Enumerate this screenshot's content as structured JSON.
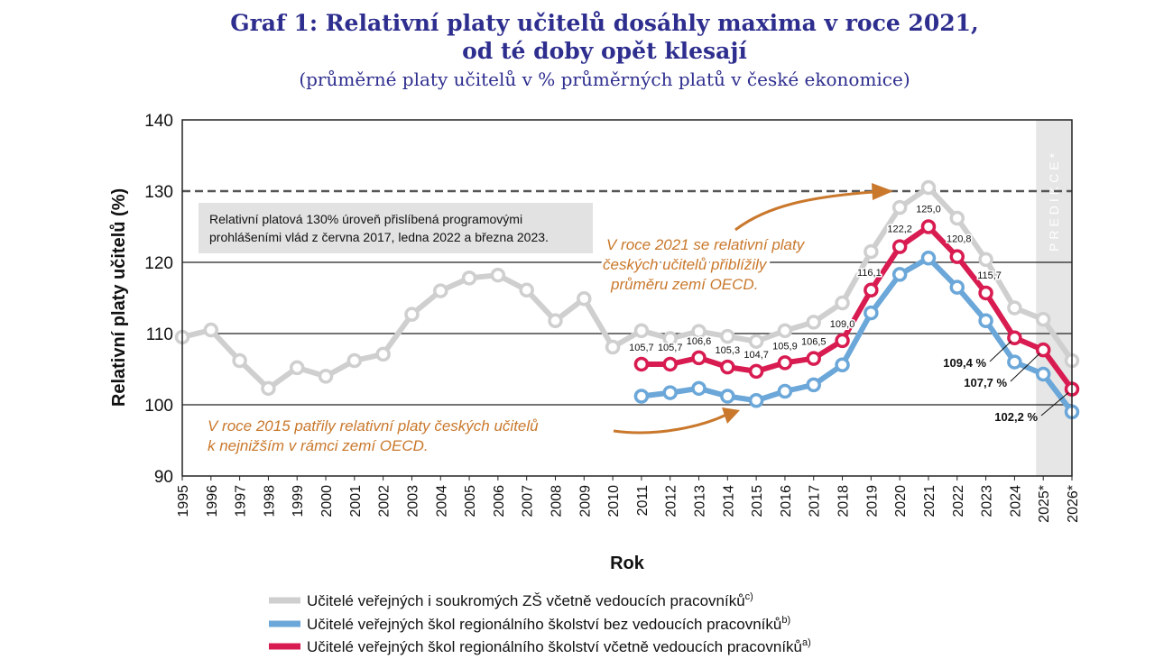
{
  "chart_data": {
    "type": "line",
    "title_line1": "Graf 1: Relativní platy učitelů dosáhly maxima v roce 2021,",
    "title_line2": "od té doby opět klesají",
    "subtitle": "(průměrné platy učitelů v % průměrných platů v české ekonomice)",
    "xlabel": "Rok",
    "ylabel": "Relativní platy učitelů (%)",
    "ylim": [
      90,
      140
    ],
    "yticks": [
      90,
      100,
      110,
      120,
      130,
      140
    ],
    "grid": true,
    "x": [
      "1995",
      "1996",
      "1997",
      "1998",
      "1999",
      "2000",
      "2001",
      "2002",
      "2003",
      "2004",
      "2005",
      "2006",
      "2007",
      "2008",
      "2009",
      "2010",
      "2011",
      "2012",
      "2013",
      "2014",
      "2015",
      "2016",
      "2017",
      "2018",
      "2019",
      "2020",
      "2021",
      "2022",
      "2023",
      "2024",
      "2025*",
      "2026*"
    ],
    "series": [
      {
        "name": "Učitelé veřejných i soukromých ZŠ včetně vedoucích pracovníků",
        "note": "c)",
        "color": "#cfcfcf",
        "values": [
          109.5,
          110.5,
          106.2,
          102.3,
          105.2,
          104.0,
          106.2,
          107.1,
          112.7,
          116.0,
          117.8,
          118.2,
          116.1,
          111.8,
          114.9,
          108.1,
          110.4,
          109.3,
          110.3,
          109.6,
          108.9,
          110.4,
          111.6,
          114.3,
          121.5,
          127.7,
          130.5,
          126.2,
          120.4,
          113.6,
          112.0,
          106.2
        ]
      },
      {
        "name": "Učitelé veřejných škol regionálního školství bez vedoucích pracovníků",
        "note": "b)",
        "color": "#6ba7d8",
        "values": [
          null,
          null,
          null,
          null,
          null,
          null,
          null,
          null,
          null,
          null,
          null,
          null,
          null,
          null,
          null,
          null,
          101.2,
          101.7,
          102.3,
          101.2,
          100.6,
          101.9,
          102.8,
          105.6,
          112.9,
          118.3,
          120.6,
          116.5,
          111.8,
          106.0,
          104.3,
          99.0
        ]
      },
      {
        "name": "Učitelé veřejných škol regionálního školství včetně vedoucích pracovníků",
        "note": "a)",
        "color": "#d81b50",
        "values": [
          null,
          null,
          null,
          null,
          null,
          null,
          null,
          null,
          null,
          null,
          null,
          null,
          null,
          null,
          null,
          null,
          105.7,
          105.7,
          106.6,
          105.3,
          104.7,
          105.9,
          106.5,
          109.0,
          116.1,
          122.2,
          125.0,
          120.8,
          115.7,
          109.4,
          107.7,
          102.2
        ],
        "data_labels": [
          "",
          "",
          "",
          "",
          "",
          "",
          "",
          "",
          "",
          "",
          "",
          "",
          "",
          "",
          "",
          "",
          "105,7",
          "105,7",
          "106,6",
          "105,3",
          "104,7",
          "105,9",
          "106,5",
          "109,0",
          "116,1",
          "122,2",
          "125,0",
          "120,8",
          "115,7",
          "109,4 %",
          "107,7 %",
          "102,2 %"
        ]
      }
    ],
    "reference_line": {
      "value": 130
    },
    "annotations": {
      "box_line1": "Relativní platová 130% úroveň přislíbená programovými",
      "box_line2": "prohlášeními vlád z června 2017, ledna 2022 a března 2023.",
      "note2021_line1": "V roce 2021 se relativní platy",
      "note2021_line2": "českých učitelů přiblížily",
      "note2021_line3": "průměru zemí OECD.",
      "note2015_line1": "V roce 2015 patřily relativní platy českých učitelů",
      "note2015_line2": "k nejnižším v rámci zemí OECD.",
      "prediction": "PREDIKCE*"
    },
    "legend_position": "bottom"
  }
}
